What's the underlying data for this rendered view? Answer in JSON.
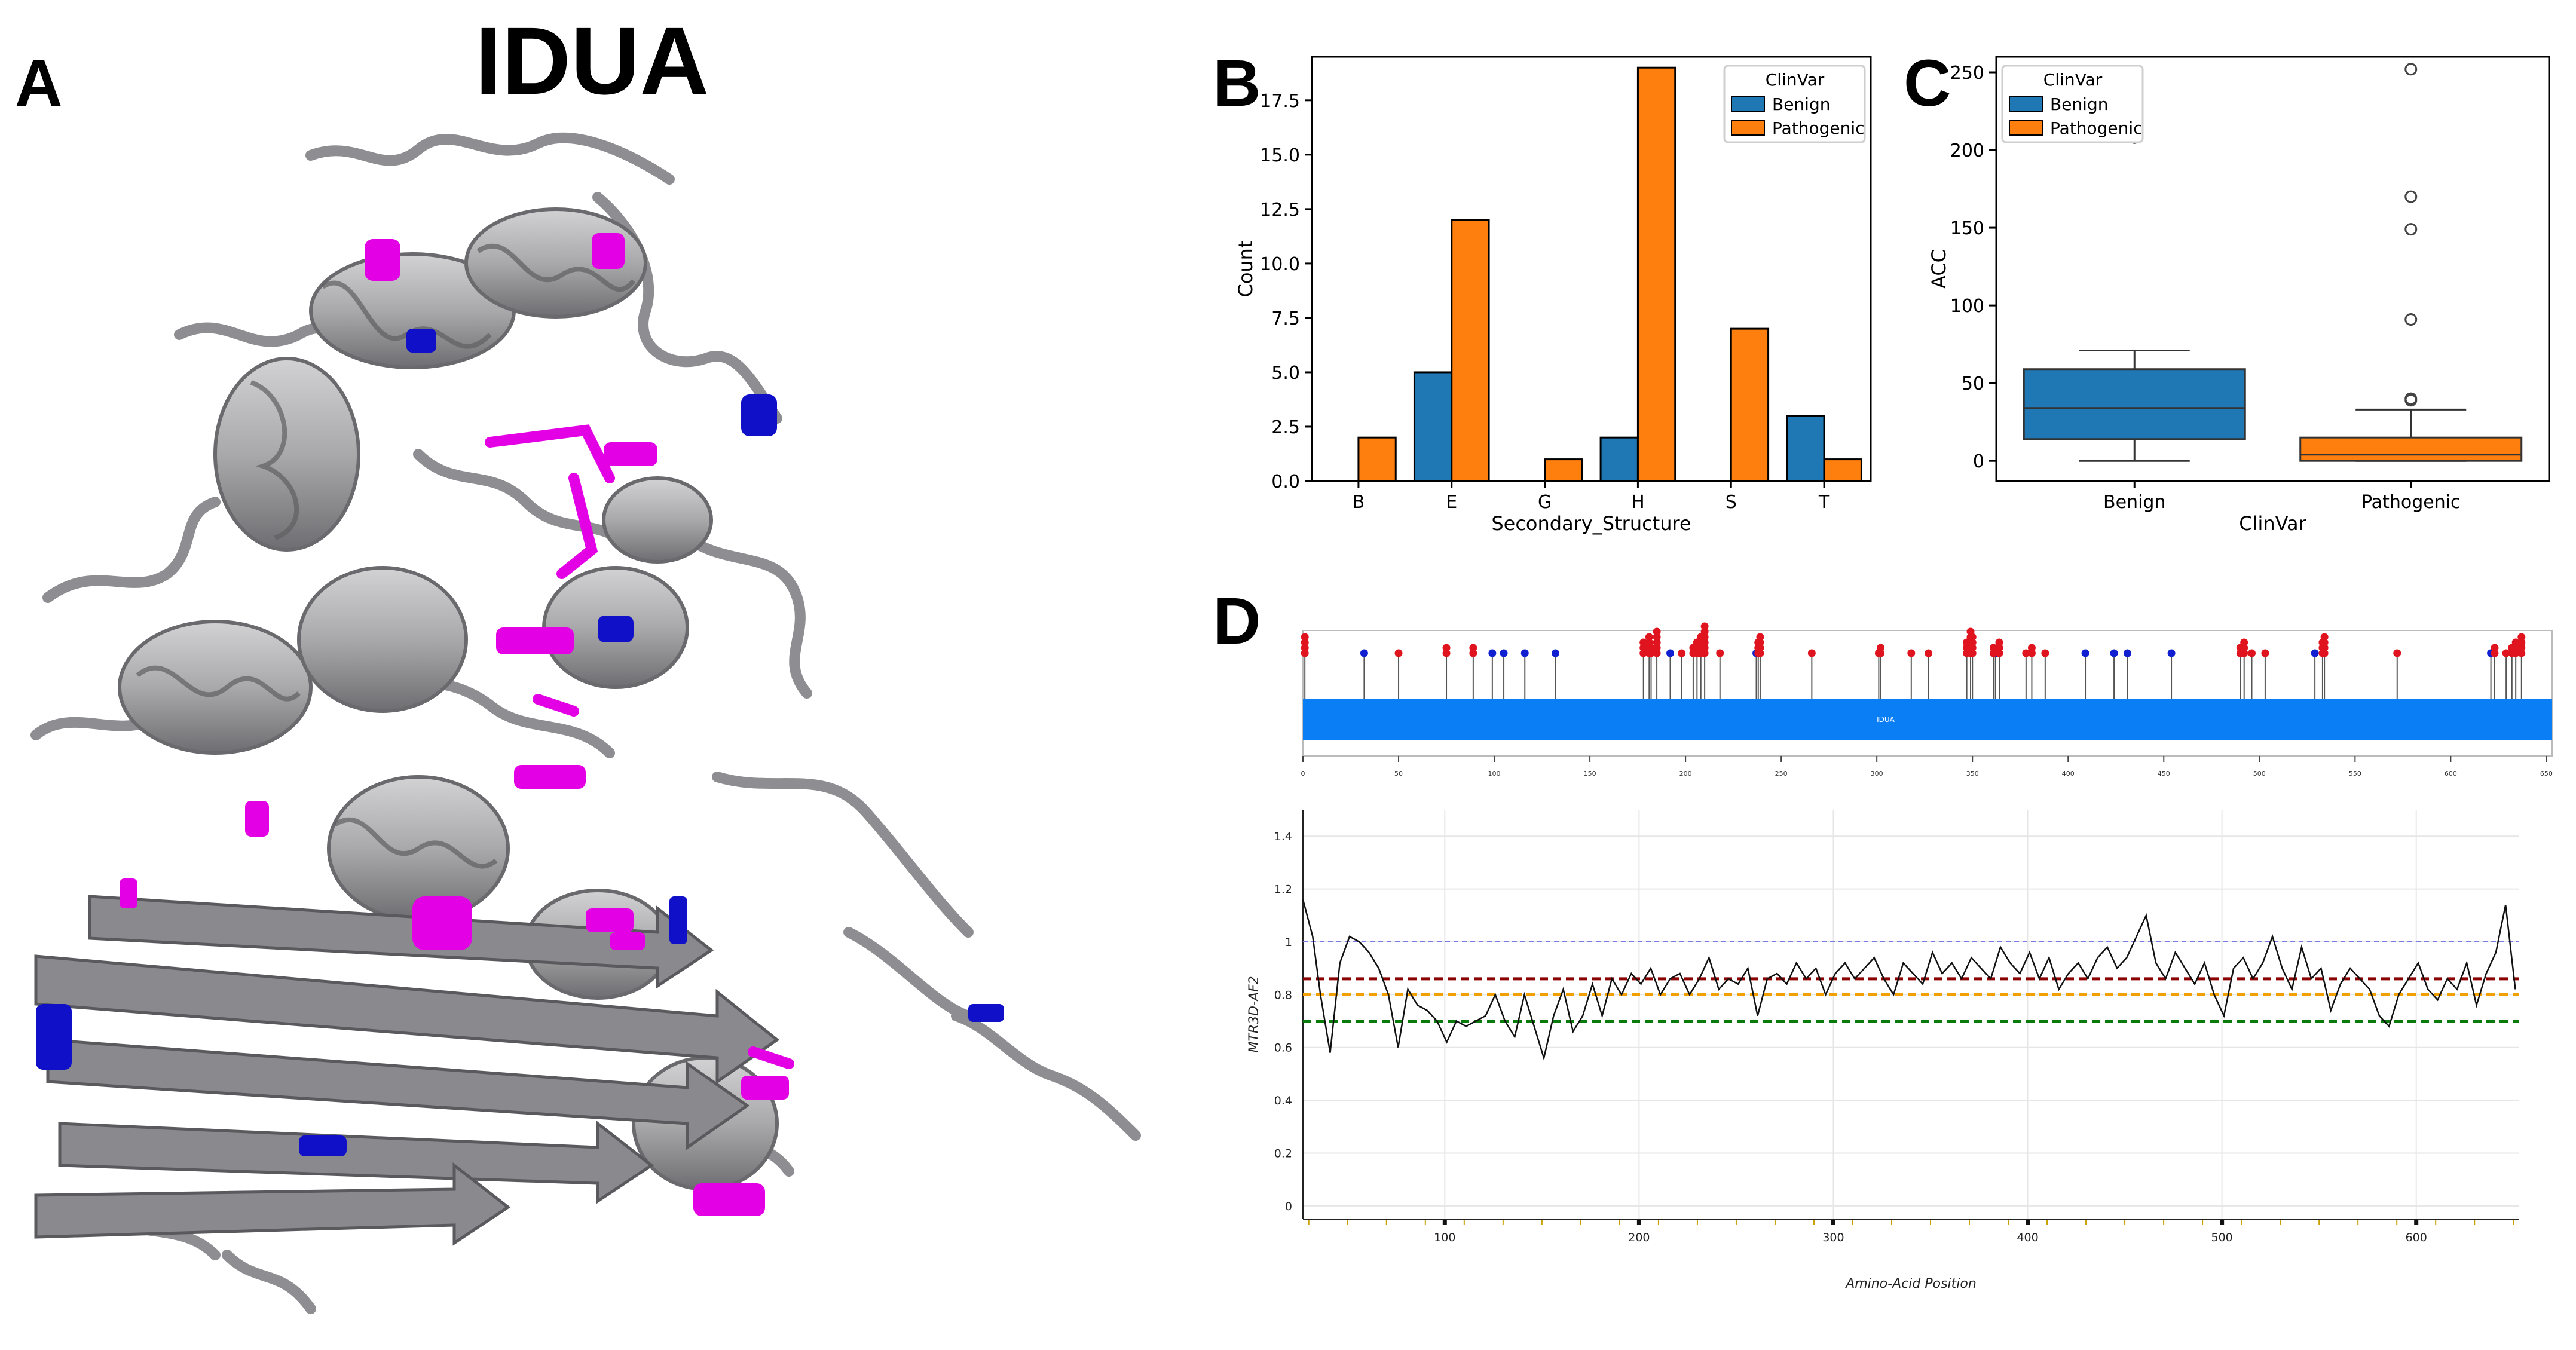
{
  "figure": {
    "title": "IDUA",
    "panel_labels": {
      "a": "A",
      "b": "B",
      "c": "C",
      "d": "D"
    }
  },
  "panel_a": {
    "description_colors": {
      "backbone": "#a9a9ab",
      "pathogenic": "#e400e4",
      "benign": "#1010c8"
    }
  },
  "chart_data": [
    {
      "id": "B",
      "type": "bar",
      "categories": [
        "B",
        "E",
        "G",
        "H",
        "S",
        "T"
      ],
      "series": [
        {
          "name": "Benign",
          "color": "#1f77b4",
          "values": [
            0,
            5,
            0,
            2,
            0,
            3
          ]
        },
        {
          "name": "Pathogenic",
          "color": "#ff7f0e",
          "values": [
            2,
            12,
            1,
            19,
            7,
            1
          ]
        }
      ],
      "xlabel": "Secondary_Structure",
      "ylabel": "Count",
      "ylim": [
        0,
        19.5
      ],
      "yticks": [
        0.0,
        2.5,
        5.0,
        7.5,
        10.0,
        12.5,
        15.0,
        17.5
      ],
      "ytick_labels": [
        "0.0",
        "2.5",
        "5.0",
        "7.5",
        "10.0",
        "12.5",
        "15.0",
        "17.5"
      ],
      "legend_title": "ClinVar",
      "legend": [
        "Benign",
        "Pathogenic"
      ],
      "legend_position": "top-right"
    },
    {
      "id": "C",
      "type": "box",
      "categories": [
        "Benign",
        "Pathogenic"
      ],
      "boxes": [
        {
          "name": "Benign",
          "color": "#1f77b4",
          "whisker_low": 0,
          "q1": 14,
          "median": 34,
          "q3": 59,
          "whisker_high": 71,
          "outliers": [
            208
          ]
        },
        {
          "name": "Pathogenic",
          "color": "#ff7f0e",
          "whisker_low": 0,
          "q1": 0,
          "median": 4,
          "q3": 15,
          "whisker_high": 33,
          "outliers": [
            39,
            40,
            91,
            149,
            170,
            252
          ]
        }
      ],
      "xlabel": "ClinVar",
      "ylabel": "ACC",
      "ylim": [
        -13,
        260
      ],
      "yticks": [
        0,
        50,
        100,
        150,
        200,
        250
      ],
      "legend_title": "ClinVar",
      "legend": [
        "Benign",
        "Pathogenic"
      ],
      "legend_position": "top-left"
    },
    {
      "id": "D-lollipop",
      "type": "lollipop",
      "protein_label": "IDUA",
      "protein_color": "#0a7ef5",
      "xlim": [
        0,
        653
      ],
      "xticks": [
        0,
        50,
        100,
        150,
        200,
        250,
        300,
        350,
        400,
        450,
        500,
        550,
        600,
        650
      ],
      "pathogenic_color": "#e0141e",
      "benign_color": "#1020d0",
      "pathogenic": [
        {
          "pos": 1,
          "count": 4
        },
        {
          "pos": 50,
          "count": 1
        },
        {
          "pos": 75,
          "count": 2
        },
        {
          "pos": 89,
          "count": 2
        },
        {
          "pos": 178,
          "count": 3
        },
        {
          "pos": 181,
          "count": 4
        },
        {
          "pos": 182,
          "count": 2
        },
        {
          "pos": 185,
          "count": 5
        },
        {
          "pos": 198,
          "count": 1
        },
        {
          "pos": 204,
          "count": 2
        },
        {
          "pos": 206,
          "count": 3
        },
        {
          "pos": 208,
          "count": 4
        },
        {
          "pos": 210,
          "count": 6
        },
        {
          "pos": 218,
          "count": 1
        },
        {
          "pos": 238,
          "count": 3
        },
        {
          "pos": 239,
          "count": 4
        },
        {
          "pos": 266,
          "count": 1
        },
        {
          "pos": 301,
          "count": 1
        },
        {
          "pos": 302,
          "count": 2
        },
        {
          "pos": 318,
          "count": 1
        },
        {
          "pos": 327,
          "count": 1
        },
        {
          "pos": 347,
          "count": 3
        },
        {
          "pos": 349,
          "count": 5
        },
        {
          "pos": 350,
          "count": 4
        },
        {
          "pos": 361,
          "count": 2
        },
        {
          "pos": 364,
          "count": 3
        },
        {
          "pos": 378,
          "count": 1
        },
        {
          "pos": 381,
          "count": 2
        },
        {
          "pos": 388,
          "count": 1
        },
        {
          "pos": 490,
          "count": 2
        },
        {
          "pos": 492,
          "count": 3
        },
        {
          "pos": 496,
          "count": 1
        },
        {
          "pos": 503,
          "count": 1
        },
        {
          "pos": 533,
          "count": 3
        },
        {
          "pos": 534,
          "count": 4
        },
        {
          "pos": 572,
          "count": 1
        },
        {
          "pos": 623,
          "count": 2
        },
        {
          "pos": 629,
          "count": 1
        },
        {
          "pos": 632,
          "count": 2
        },
        {
          "pos": 634,
          "count": 3
        },
        {
          "pos": 637,
          "count": 4
        }
      ],
      "benign": [
        {
          "pos": 32,
          "count": 1
        },
        {
          "pos": 99,
          "count": 1
        },
        {
          "pos": 105,
          "count": 1
        },
        {
          "pos": 116,
          "count": 1
        },
        {
          "pos": 132,
          "count": 1
        },
        {
          "pos": 192,
          "count": 1
        },
        {
          "pos": 237,
          "count": 1
        },
        {
          "pos": 362,
          "count": 1
        },
        {
          "pos": 409,
          "count": 1
        },
        {
          "pos": 424,
          "count": 1
        },
        {
          "pos": 431,
          "count": 1
        },
        {
          "pos": 454,
          "count": 1
        },
        {
          "pos": 529,
          "count": 1
        },
        {
          "pos": 621,
          "count": 1
        }
      ]
    },
    {
      "id": "D-line",
      "type": "line",
      "xlabel": "Amino-Acid Position",
      "ylabel": "MTR3D-AF2",
      "xlim": [
        27,
        653
      ],
      "ylim": [
        -0.05,
        1.5
      ],
      "xticks": [
        100,
        200,
        300,
        400,
        500,
        600
      ],
      "yticks": [
        0,
        0.2,
        0.4,
        0.6,
        0.8,
        1,
        1.2,
        1.4
      ],
      "ytick_labels": [
        "0",
        "0.2",
        "0.4",
        "0.6",
        "0.8",
        "1",
        "1.2",
        "1.4"
      ],
      "reference_lines": [
        {
          "y": 1.0,
          "color": "#7b7be8",
          "style": "dashed-thin"
        },
        {
          "y": 0.86,
          "color": "#8b0000",
          "style": "dashed"
        },
        {
          "y": 0.8,
          "color": "#f0a000",
          "style": "dashed"
        },
        {
          "y": 0.7,
          "color": "#0a7a0a",
          "style": "dashed"
        }
      ],
      "series": [
        {
          "name": "MTR3D-AF2",
          "color": "#111111",
          "points": [
            [
              27,
              1.16
            ],
            [
              32,
              1.02
            ],
            [
              36,
              0.8
            ],
            [
              41,
              0.58
            ],
            [
              46,
              0.92
            ],
            [
              51,
              1.02
            ],
            [
              56,
              1.0
            ],
            [
              61,
              0.96
            ],
            [
              66,
              0.9
            ],
            [
              71,
              0.8
            ],
            [
              76,
              0.6
            ],
            [
              81,
              0.82
            ],
            [
              86,
              0.76
            ],
            [
              91,
              0.74
            ],
            [
              96,
              0.7
            ],
            [
              101,
              0.62
            ],
            [
              106,
              0.7
            ],
            [
              111,
              0.68
            ],
            [
              116,
              0.7
            ],
            [
              121,
              0.72
            ],
            [
              126,
              0.8
            ],
            [
              131,
              0.7
            ],
            [
              136,
              0.64
            ],
            [
              141,
              0.8
            ],
            [
              146,
              0.68
            ],
            [
              151,
              0.56
            ],
            [
              156,
              0.72
            ],
            [
              161,
              0.82
            ],
            [
              166,
              0.66
            ],
            [
              171,
              0.72
            ],
            [
              176,
              0.84
            ],
            [
              181,
              0.72
            ],
            [
              186,
              0.86
            ],
            [
              191,
              0.8
            ],
            [
              196,
              0.88
            ],
            [
              201,
              0.84
            ],
            [
              206,
              0.9
            ],
            [
              211,
              0.8
            ],
            [
              216,
              0.86
            ],
            [
              221,
              0.88
            ],
            [
              226,
              0.8
            ],
            [
              231,
              0.86
            ],
            [
              236,
              0.94
            ],
            [
              241,
              0.82
            ],
            [
              246,
              0.86
            ],
            [
              251,
              0.84
            ],
            [
              256,
              0.9
            ],
            [
              261,
              0.72
            ],
            [
              266,
              0.86
            ],
            [
              271,
              0.88
            ],
            [
              276,
              0.84
            ],
            [
              281,
              0.92
            ],
            [
              286,
              0.86
            ],
            [
              291,
              0.9
            ],
            [
              296,
              0.8
            ],
            [
              301,
              0.88
            ],
            [
              306,
              0.92
            ],
            [
              311,
              0.86
            ],
            [
              316,
              0.9
            ],
            [
              321,
              0.94
            ],
            [
              326,
              0.86
            ],
            [
              331,
              0.8
            ],
            [
              336,
              0.92
            ],
            [
              341,
              0.88
            ],
            [
              346,
              0.84
            ],
            [
              351,
              0.96
            ],
            [
              356,
              0.88
            ],
            [
              361,
              0.92
            ],
            [
              366,
              0.86
            ],
            [
              371,
              0.94
            ],
            [
              376,
              0.9
            ],
            [
              381,
              0.86
            ],
            [
              386,
              0.98
            ],
            [
              391,
              0.92
            ],
            [
              396,
              0.88
            ],
            [
              401,
              0.96
            ],
            [
              406,
              0.86
            ],
            [
              411,
              0.94
            ],
            [
              416,
              0.82
            ],
            [
              421,
              0.88
            ],
            [
              426,
              0.92
            ],
            [
              431,
              0.86
            ],
            [
              436,
              0.94
            ],
            [
              441,
              0.98
            ],
            [
              446,
              0.9
            ],
            [
              451,
              0.94
            ],
            [
              456,
              1.02
            ],
            [
              461,
              1.1
            ],
            [
              466,
              0.92
            ],
            [
              471,
              0.86
            ],
            [
              476,
              0.96
            ],
            [
              481,
              0.9
            ],
            [
              486,
              0.84
            ],
            [
              491,
              0.92
            ],
            [
              496,
              0.8
            ],
            [
              501,
              0.72
            ],
            [
              506,
              0.9
            ],
            [
              511,
              0.94
            ],
            [
              516,
              0.86
            ],
            [
              521,
              0.92
            ],
            [
              526,
              1.02
            ],
            [
              531,
              0.9
            ],
            [
              536,
              0.82
            ],
            [
              541,
              0.98
            ],
            [
              546,
              0.86
            ],
            [
              551,
              0.9
            ],
            [
              556,
              0.74
            ],
            [
              561,
              0.84
            ],
            [
              566,
              0.9
            ],
            [
              571,
              0.86
            ],
            [
              576,
              0.82
            ],
            [
              581,
              0.72
            ],
            [
              586,
              0.68
            ],
            [
              591,
              0.8
            ],
            [
              596,
              0.86
            ],
            [
              601,
              0.92
            ],
            [
              606,
              0.82
            ],
            [
              611,
              0.78
            ],
            [
              616,
              0.86
            ],
            [
              621,
              0.82
            ],
            [
              626,
              0.92
            ],
            [
              631,
              0.76
            ],
            [
              636,
              0.88
            ],
            [
              641,
              0.96
            ],
            [
              646,
              1.14
            ],
            [
              651,
              0.82
            ]
          ]
        }
      ]
    }
  ]
}
